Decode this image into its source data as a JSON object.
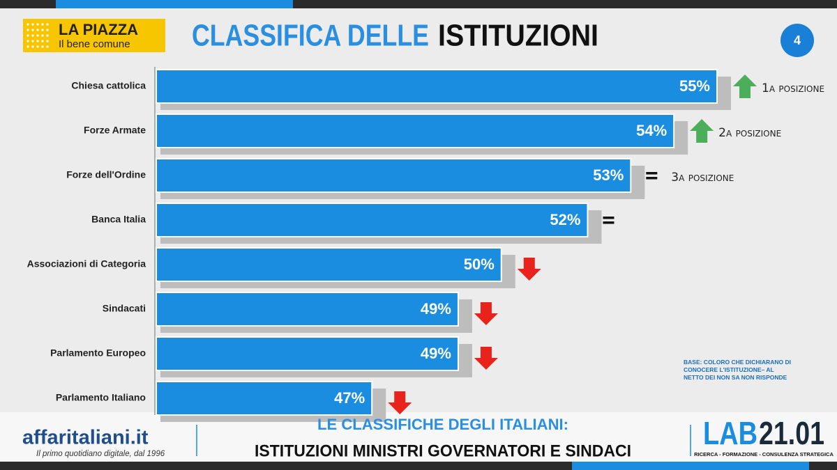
{
  "header": {
    "logo_title": "LA PIAZZA",
    "logo_subtitle": "Il bene comune",
    "title_part1": "CLASSIFICA DELLE",
    "title_part2": "ISTITUZIONI",
    "page_number": "4"
  },
  "chart_data": {
    "type": "bar",
    "orientation": "horizontal",
    "categories": [
      "Chiesa cattolica",
      "Forze Armate",
      "Forze dell'Ordine",
      "Banca Italia",
      "Associazioni di Categoria",
      "Sindacati",
      "Parlamento Europeo",
      "Parlamento Italiano"
    ],
    "values": [
      55,
      54,
      53,
      52,
      50,
      49,
      49,
      47
    ],
    "value_labels": [
      "55%",
      "54%",
      "53%",
      "52%",
      "50%",
      "49%",
      "49%",
      "47%"
    ],
    "color": "#1a8de0",
    "xlim": [
      42,
      55
    ],
    "annotations": [
      "1a posizione",
      "2a posizione",
      "3a posizione"
    ],
    "note": "BASE: COLORO CHE DICHIARANO DI CONOCERE L'ISTITUZIONE– AL NETTO DEI NON SA NON RISPONDE"
  },
  "footer": {
    "brand": "affaritaliani.it",
    "brand_tagline": "Il primo quotidiano digitale, dal 1996",
    "headline1": "LE CLASSIFICHE DEGLI ITALIANI:",
    "headline2": "ISTITUZIONI MINISTRI GOVERNATORI E SINDACI",
    "lab_part1": "LAB",
    "lab_part2": "21.01",
    "lab_tagline": "RICERCA - FORMAZIONE - CONSULENZA STRATEGICA"
  }
}
